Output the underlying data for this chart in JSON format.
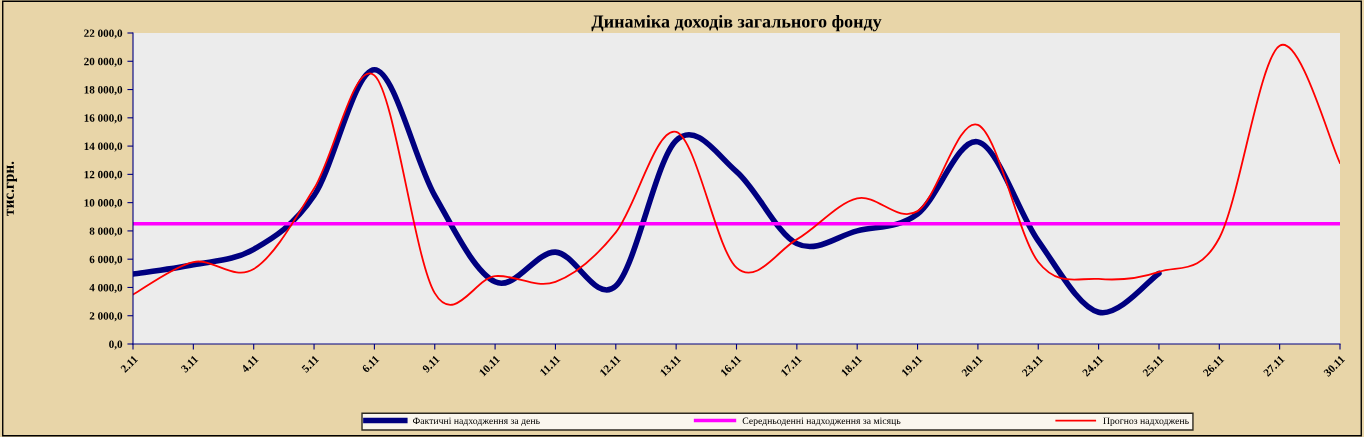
{
  "chart_data": {
    "type": "line",
    "title": "Динаміка доходів загального фонду",
    "ylabel": "тис.грн.",
    "categories": [
      "2.11",
      "3.11",
      "4.11",
      "5.11",
      "6.11",
      "9.11",
      "10.11",
      "11.11",
      "12.11",
      "13.11",
      "16.11",
      "17.11",
      "18.11",
      "19.11",
      "20.11",
      "23.11",
      "24.11",
      "25.11",
      "26.11",
      "27.11",
      "30.11"
    ],
    "series": [
      {
        "name": "Фактичні надходження за день",
        "color": "#000080",
        "values": [
          4950,
          5600,
          6700,
          10500,
          19400,
          10500,
          4400,
          6500,
          4100,
          14400,
          12200,
          7100,
          8000,
          9200,
          14300,
          7300,
          2250,
          5000,
          null,
          null,
          null
        ]
      },
      {
        "name": "Середньоденні надходження за місяць",
        "color": "#ff00ff",
        "values": [
          8500,
          8500,
          8500,
          8500,
          8500,
          8500,
          8500,
          8500,
          8500,
          8500,
          8500,
          8500,
          8500,
          8500,
          8500,
          8500,
          8500,
          8500,
          8500,
          8500,
          8500
        ]
      },
      {
        "name": "Прогноз надходжень",
        "color": "#ff0000",
        "values": [
          3500,
          5800,
          5300,
          11000,
          19000,
          3600,
          4800,
          4400,
          7900,
          15000,
          5400,
          7400,
          10300,
          9400,
          15500,
          5800,
          4600,
          5100,
          7500,
          21100,
          12800
        ]
      }
    ],
    "ylim": [
      0,
      22000
    ],
    "yticks": [
      {
        "value": 0,
        "label": "0,0"
      },
      {
        "value": 2000,
        "label": "2 000,0"
      },
      {
        "value": 4000,
        "label": "4 000,0"
      },
      {
        "value": 6000,
        "label": "6 000,0"
      },
      {
        "value": 8000,
        "label": "8 000,0"
      },
      {
        "value": 10000,
        "label": "10 000,0"
      },
      {
        "value": 12000,
        "label": "12 000,0"
      },
      {
        "value": 14000,
        "label": "14 000,0"
      },
      {
        "value": 16000,
        "label": "16 000,0"
      },
      {
        "value": 18000,
        "label": "18 000,0"
      },
      {
        "value": 20000,
        "label": "20 000,0"
      },
      {
        "value": 22000,
        "label": "22 000,0"
      }
    ],
    "grid": false,
    "legend": "bottom",
    "marker": "none",
    "line_style": "solid"
  }
}
